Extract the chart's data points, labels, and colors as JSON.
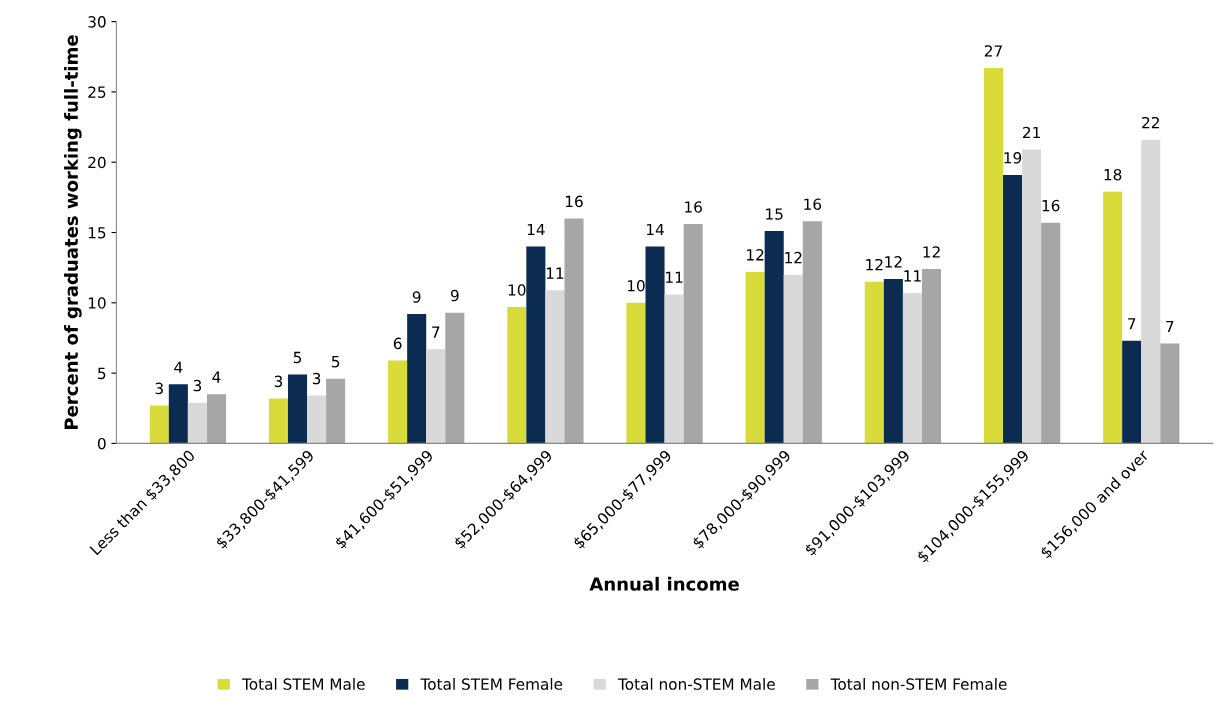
{
  "chart_data": {
    "type": "bar",
    "xlabel": "Annual income",
    "ylabel": "Percent of graduates working full-time",
    "categories": [
      "Less than $33,800",
      "$33,800-$41,599",
      "$41,600-$51,999",
      "$52,000-$64,999",
      "$65,000-$77,999",
      "$78,000-$90,999",
      "$91,000-$103,999",
      "$104,000-$155,999",
      "$156,000 and over"
    ],
    "series": [
      {
        "name": "Total STEM Male",
        "color": "#d9db3a",
        "values": [
          2.7,
          3.2,
          5.9,
          9.7,
          10.0,
          12.2,
          11.5,
          26.7,
          17.9
        ],
        "value_labels": [
          "3",
          "3",
          "6",
          "10",
          "10",
          "12",
          "12",
          "27",
          "18"
        ]
      },
      {
        "name": "Total STEM Female",
        "color": "#0b2c50",
        "values": [
          4.2,
          4.9,
          9.2,
          14.0,
          14.0,
          15.1,
          11.7,
          19.1,
          7.3
        ],
        "value_labels": [
          "4",
          "5",
          "9",
          "14",
          "14",
          "15",
          "12",
          "19",
          "7"
        ]
      },
      {
        "name": "Total non-STEM Male",
        "color": "#d9d9d9",
        "values": [
          2.9,
          3.4,
          6.7,
          10.9,
          10.6,
          12.0,
          10.7,
          20.9,
          21.6
        ],
        "value_labels": [
          "3",
          "3",
          "7",
          "11",
          "11",
          "12",
          "11",
          "21",
          "22"
        ]
      },
      {
        "name": "Total non-STEM Female",
        "color": "#a6a6a6",
        "values": [
          3.5,
          4.6,
          9.3,
          16.0,
          15.6,
          15.8,
          12.4,
          15.7,
          7.1
        ],
        "value_labels": [
          "4",
          "5",
          "9",
          "16",
          "16",
          "16",
          "12",
          "16",
          "7"
        ]
      }
    ],
    "ylim": [
      0,
      30
    ],
    "yticks": [
      0,
      5,
      10,
      15,
      20,
      25,
      30
    ],
    "grid": false,
    "legend": "bottom"
  }
}
